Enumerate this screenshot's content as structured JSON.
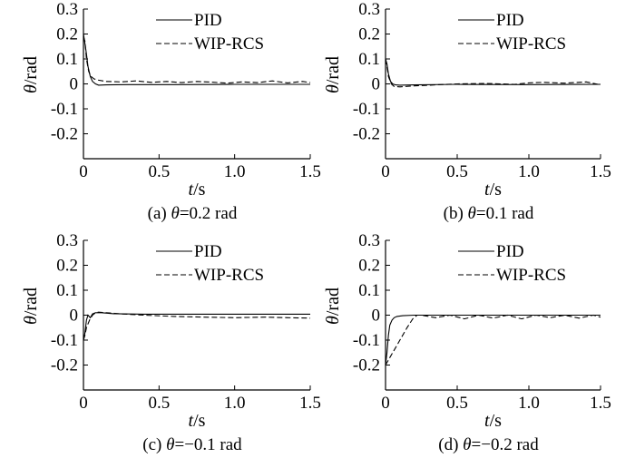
{
  "figure": {
    "caption_prefixes": [
      "(a)",
      "(b)",
      "(c)",
      "(d)"
    ]
  },
  "chart_data": [
    {
      "type": "line",
      "caption": "(a) θ=0.2 rad",
      "caption_prefix": "(a)",
      "caption_symbol": "θ",
      "caption_value": "=0.2 rad",
      "xlabel_var": "t",
      "xlabel_unit": "/s",
      "ylabel_var": "θ",
      "ylabel_unit": "/rad",
      "xlim": [
        0,
        1.5
      ],
      "ylim": [
        -0.3,
        0.3
      ],
      "xticks": [
        "0",
        "0.5",
        "1.0",
        "1.5"
      ],
      "yticks": [
        "0.3",
        "0.2",
        "0.1",
        "0",
        "-0.1",
        "-0.2"
      ],
      "ytick_values": [
        0.3,
        0.2,
        0.1,
        0,
        -0.1,
        -0.2
      ],
      "xtick_values": [
        0,
        0.5,
        1.0,
        1.5
      ],
      "legend": [
        "PID",
        "WIP-RCS"
      ],
      "legend_position": "top-right",
      "grid": false,
      "series": [
        {
          "name": "PID",
          "style": "solid",
          "x": [
            0,
            0.01,
            0.02,
            0.03,
            0.045,
            0.06,
            0.08,
            0.1,
            0.15,
            0.3,
            0.6,
            1.0,
            1.5
          ],
          "y": [
            0.2,
            0.16,
            0.12,
            0.07,
            0.03,
            0.01,
            0.0,
            -0.005,
            -0.004,
            -0.003,
            -0.003,
            -0.002,
            -0.002
          ]
        },
        {
          "name": "WIP-RCS",
          "style": "dashed",
          "x": [
            0,
            0.01,
            0.02,
            0.035,
            0.05,
            0.07,
            0.1,
            0.15,
            0.25,
            0.35,
            0.45,
            0.55,
            0.65,
            0.75,
            0.85,
            0.95,
            1.05,
            1.15,
            1.25,
            1.35,
            1.45,
            1.5
          ],
          "y": [
            0.19,
            0.17,
            0.1,
            0.05,
            0.03,
            0.02,
            0.015,
            0.01,
            0.008,
            0.012,
            0.006,
            0.01,
            0.005,
            0.01,
            0.007,
            0.003,
            0.008,
            0.005,
            0.012,
            0.004,
            0.01,
            0.005
          ]
        }
      ]
    },
    {
      "type": "line",
      "caption": "(b) θ=0.1 rad",
      "caption_prefix": "(b)",
      "caption_symbol": "θ",
      "caption_value": "=0.1 rad",
      "xlabel_var": "t",
      "xlabel_unit": "/s",
      "ylabel_var": "θ",
      "ylabel_unit": "/rad",
      "xlim": [
        0,
        1.5
      ],
      "ylim": [
        -0.3,
        0.3
      ],
      "xticks": [
        "0",
        "0.5",
        "1.0",
        "1.5"
      ],
      "yticks": [
        "0.3",
        "0.2",
        "0.1",
        "0",
        "-0.1",
        "-0.2"
      ],
      "ytick_values": [
        0.3,
        0.2,
        0.1,
        0,
        -0.1,
        -0.2
      ],
      "xtick_values": [
        0,
        0.5,
        1.0,
        1.5
      ],
      "legend": [
        "PID",
        "WIP-RCS"
      ],
      "legend_position": "top-right",
      "grid": false,
      "series": [
        {
          "name": "PID",
          "style": "solid",
          "x": [
            0,
            0.01,
            0.02,
            0.035,
            0.05,
            0.07,
            0.1,
            0.2,
            0.5,
            1.0,
            1.5
          ],
          "y": [
            0.1,
            0.08,
            0.04,
            0.01,
            0.0,
            -0.004,
            -0.005,
            -0.004,
            -0.002,
            -0.003,
            -0.002
          ]
        },
        {
          "name": "WIP-RCS",
          "style": "dashed",
          "x": [
            0,
            0.01,
            0.02,
            0.04,
            0.06,
            0.1,
            0.2,
            0.35,
            0.5,
            0.7,
            0.9,
            1.0,
            1.1,
            1.25,
            1.4,
            1.5
          ],
          "y": [
            0.1,
            0.07,
            0.03,
            0.0,
            -0.01,
            -0.012,
            -0.008,
            -0.004,
            0.0,
            0.002,
            -0.002,
            0.004,
            0.006,
            0.003,
            0.008,
            -0.004
          ]
        }
      ]
    },
    {
      "type": "line",
      "caption": "(c) θ=−0.1 rad",
      "caption_prefix": "(c)",
      "caption_symbol": "θ",
      "caption_value": "=−0.1 rad",
      "xlabel_var": "t",
      "xlabel_unit": "/s",
      "ylabel_var": "θ",
      "ylabel_unit": "/rad",
      "xlim": [
        0,
        1.5
      ],
      "ylim": [
        -0.3,
        0.3
      ],
      "xticks": [
        "0",
        "0.5",
        "1.0",
        "1.5"
      ],
      "yticks": [
        "0.3",
        "0.2",
        "0.1",
        "0",
        "-0.1",
        "-0.2"
      ],
      "ytick_values": [
        0.3,
        0.2,
        0.1,
        0,
        -0.1,
        -0.2
      ],
      "xtick_values": [
        0,
        0.5,
        1.0,
        1.5
      ],
      "legend": [
        "PID",
        "WIP-RCS"
      ],
      "legend_position": "top-right",
      "grid": false,
      "series": [
        {
          "name": "PID",
          "style": "solid",
          "x": [
            0,
            0.01,
            0.02,
            0.03,
            0.045,
            0.06,
            0.08,
            0.12,
            0.2,
            0.4,
            0.8,
            1.2,
            1.5
          ],
          "y": [
            -0.1,
            -0.07,
            -0.02,
            0.0,
            -0.01,
            0.005,
            0.01,
            0.01,
            0.006,
            0.004,
            0.004,
            0.004,
            0.004
          ]
        },
        {
          "name": "WIP-RCS",
          "style": "dashed",
          "x": [
            0,
            0.01,
            0.02,
            0.04,
            0.06,
            0.08,
            0.1,
            0.15,
            0.25,
            0.4,
            0.6,
            0.8,
            1.0,
            1.2,
            1.35,
            1.5
          ],
          "y": [
            -0.1,
            -0.08,
            -0.05,
            -0.02,
            0.0,
            0.01,
            0.012,
            0.01,
            0.005,
            0.0,
            -0.005,
            -0.008,
            -0.01,
            -0.008,
            -0.01,
            -0.012
          ]
        }
      ]
    },
    {
      "type": "line",
      "caption": "(d) θ=−0.2 rad",
      "caption_prefix": "(d)",
      "caption_symbol": "θ",
      "caption_value": "=−0.2 rad",
      "xlabel_var": "t",
      "xlabel_unit": "/s",
      "ylabel_var": "θ",
      "ylabel_unit": "/rad",
      "xlim": [
        0,
        1.5
      ],
      "ylim": [
        -0.3,
        0.3
      ],
      "xticks": [
        "0",
        "0.5",
        "1.0",
        "1.5"
      ],
      "yticks": [
        "0.3",
        "0.2",
        "0.1",
        "0",
        "-0.1",
        "-0.2"
      ],
      "ytick_values": [
        0.3,
        0.2,
        0.1,
        0,
        -0.1,
        -0.2
      ],
      "xtick_values": [
        0,
        0.5,
        1.0,
        1.5
      ],
      "legend": [
        "PID",
        "WIP-RCS"
      ],
      "legend_position": "top-right",
      "grid": false,
      "series": [
        {
          "name": "PID",
          "style": "solid",
          "x": [
            0,
            0.01,
            0.02,
            0.03,
            0.045,
            0.06,
            0.08,
            0.12,
            0.2,
            0.5,
            1.0,
            1.5
          ],
          "y": [
            -0.2,
            -0.15,
            -0.08,
            -0.04,
            -0.02,
            -0.01,
            -0.005,
            -0.002,
            0.0,
            0.0,
            0.0,
            0.0
          ]
        },
        {
          "name": "WIP-RCS",
          "style": "dashed",
          "x": [
            0,
            0.03,
            0.07,
            0.11,
            0.15,
            0.19,
            0.22,
            0.25,
            0.35,
            0.45,
            0.55,
            0.65,
            0.75,
            0.85,
            0.95,
            1.05,
            1.15,
            1.25,
            1.35,
            1.45,
            1.5
          ],
          "y": [
            -0.2,
            -0.17,
            -0.13,
            -0.09,
            -0.05,
            -0.015,
            0.0,
            0.0,
            -0.01,
            0.0,
            -0.015,
            0.0,
            -0.012,
            0.0,
            -0.015,
            0.0,
            -0.01,
            0.0,
            -0.012,
            0.0,
            -0.008
          ]
        }
      ]
    }
  ]
}
